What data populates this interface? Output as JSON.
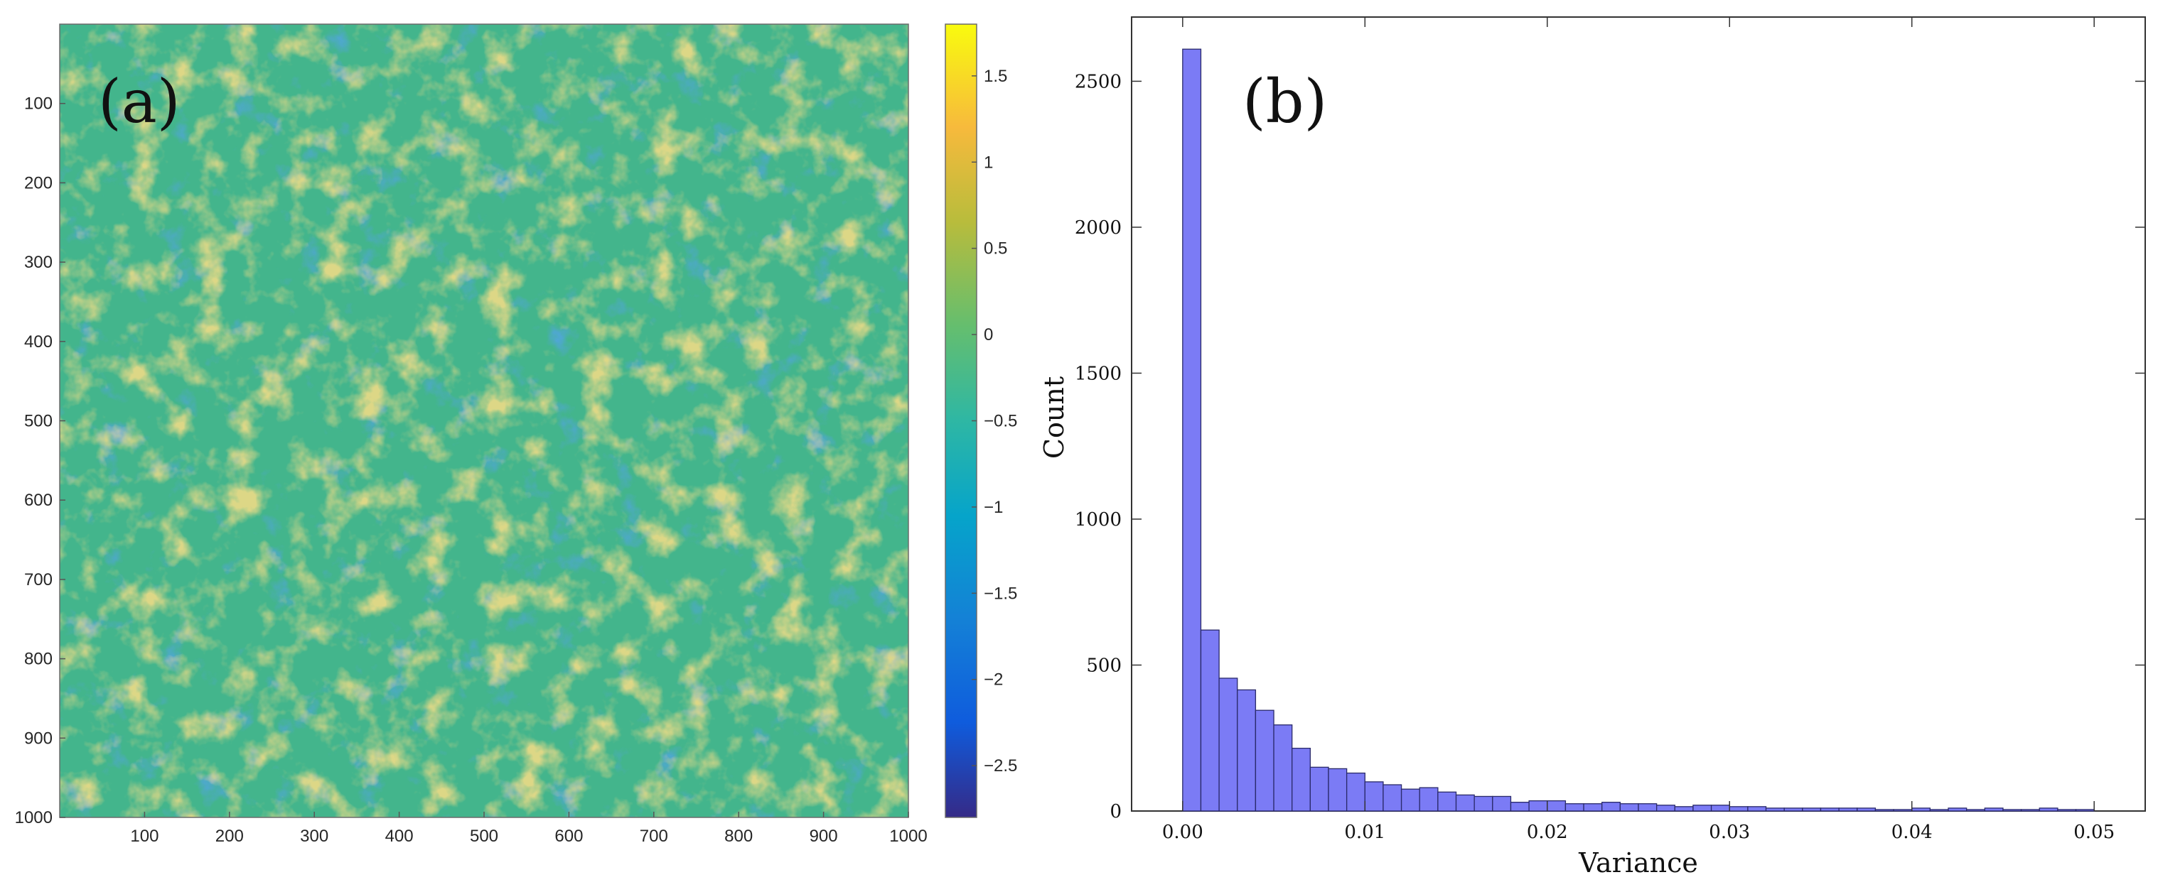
{
  "chart_data": [
    {
      "type": "heatmap",
      "panel_label": "(a)",
      "x_ticks": [
        100,
        200,
        300,
        400,
        500,
        600,
        700,
        800,
        900,
        1000
      ],
      "y_ticks": [
        100,
        200,
        300,
        400,
        500,
        600,
        700,
        800,
        900,
        1000
      ],
      "xlim": [
        0,
        1000
      ],
      "ylim": [
        0,
        1000
      ],
      "colorbar": {
        "ticks": [
          1.5,
          1,
          0.5,
          0,
          -0.5,
          -1,
          -1.5,
          -2,
          -2.5
        ],
        "tick_labels": [
          "1.5",
          "1",
          "0.5",
          "0",
          "−0.5",
          "−1",
          "−1.5",
          "−2",
          "−2.5"
        ],
        "range": [
          -2.8,
          1.8
        ],
        "colormap": "parula"
      }
    },
    {
      "type": "bar",
      "panel_label": "(b)",
      "xlabel": "Variance",
      "ylabel": "Count",
      "bin_width": 0.001,
      "x_start": 0.0,
      "values": [
        2610,
        620,
        455,
        415,
        345,
        295,
        215,
        150,
        145,
        130,
        100,
        90,
        75,
        80,
        65,
        55,
        50,
        50,
        30,
        35,
        35,
        25,
        25,
        30,
        25,
        25,
        20,
        15,
        20,
        20,
        15,
        15,
        10,
        10,
        10,
        10,
        10,
        10,
        5,
        5,
        10,
        5,
        10,
        5,
        10,
        5,
        5,
        10,
        5,
        5
      ],
      "x_ticks": [
        "0.00",
        "0.01",
        "0.02",
        "0.03",
        "0.04",
        "0.05"
      ],
      "y_ticks": [
        "0",
        "500",
        "1000",
        "1500",
        "2000",
        "2500"
      ],
      "xlim": [
        -0.0028,
        0.0528
      ],
      "ylim": [
        0,
        2720
      ],
      "bar_color": "#7b7bf5",
      "edge_color": "#2a2a6a"
    }
  ]
}
